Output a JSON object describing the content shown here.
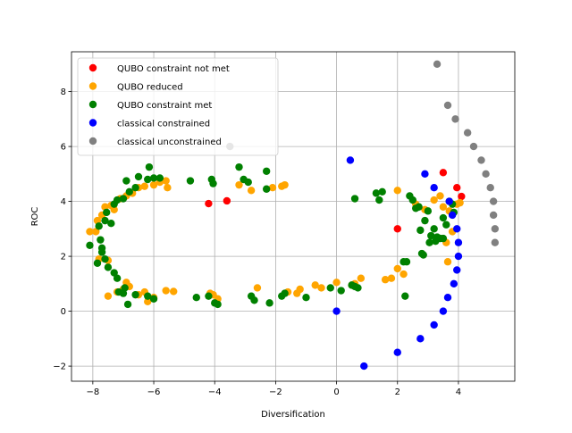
{
  "chart_data": {
    "type": "scatter",
    "title": "",
    "xlabel": "Diversification",
    "ylabel": "ROC",
    "xlim": [
      -8.7,
      5.85
    ],
    "ylim": [
      -2.55,
      9.45
    ],
    "xticks": [
      -8,
      -6,
      -4,
      -2,
      0,
      2,
      4
    ],
    "yticks": [
      -2,
      0,
      2,
      4,
      6,
      8
    ],
    "xtick_labels": [
      "−8",
      "−6",
      "−4",
      "−2",
      "0",
      "2",
      "4"
    ],
    "ytick_labels": [
      "−2",
      "0",
      "2",
      "4",
      "6",
      "8"
    ],
    "grid": true,
    "legend_position": "top-left",
    "series": [
      {
        "name": "QUBO constraint not met",
        "color": "#ff0000",
        "points": [
          [
            -4.2,
            3.92
          ],
          [
            -3.6,
            4.02
          ],
          [
            2.0,
            3.0
          ],
          [
            3.5,
            5.05
          ],
          [
            3.95,
            4.5
          ],
          [
            4.1,
            4.18
          ]
        ]
      },
      {
        "name": "QUBO reduced",
        "color": "#ffa500",
        "points": [
          [
            -8.1,
            2.9
          ],
          [
            -7.9,
            2.9
          ],
          [
            -7.85,
            3.3
          ],
          [
            -7.7,
            3.5
          ],
          [
            -7.6,
            3.8
          ],
          [
            -7.4,
            3.85
          ],
          [
            -7.3,
            3.7
          ],
          [
            -7.1,
            4.1
          ],
          [
            -6.9,
            4.2
          ],
          [
            -6.7,
            4.3
          ],
          [
            -6.5,
            4.5
          ],
          [
            -6.3,
            4.55
          ],
          [
            -6.0,
            4.6
          ],
          [
            -5.8,
            4.7
          ],
          [
            -5.6,
            4.75
          ],
          [
            -5.55,
            4.5
          ],
          [
            -3.2,
            4.6
          ],
          [
            -2.8,
            4.4
          ],
          [
            -2.1,
            4.5
          ],
          [
            -1.8,
            4.55
          ],
          [
            -1.7,
            4.6
          ],
          [
            -7.8,
            1.9
          ],
          [
            -7.5,
            1.85
          ],
          [
            -7.5,
            0.55
          ],
          [
            -7.2,
            0.7
          ],
          [
            -7.0,
            0.8
          ],
          [
            -6.9,
            1.05
          ],
          [
            -6.8,
            0.9
          ],
          [
            -6.5,
            0.6
          ],
          [
            -6.3,
            0.7
          ],
          [
            -6.2,
            0.35
          ],
          [
            -6.0,
            0.5
          ],
          [
            -5.6,
            0.75
          ],
          [
            -5.35,
            0.72
          ],
          [
            -4.15,
            0.65
          ],
          [
            -4.05,
            0.6
          ],
          [
            -3.9,
            0.45
          ],
          [
            -2.6,
            0.85
          ],
          [
            -1.6,
            0.7
          ],
          [
            -1.3,
            0.65
          ],
          [
            -1.2,
            0.8
          ],
          [
            -0.7,
            0.95
          ],
          [
            -0.5,
            0.85
          ],
          [
            0.0,
            1.05
          ],
          [
            0.5,
            0.95
          ],
          [
            0.6,
            1.0
          ],
          [
            0.8,
            1.2
          ],
          [
            1.6,
            1.15
          ],
          [
            1.8,
            1.2
          ],
          [
            2.0,
            1.55
          ],
          [
            2.2,
            1.35
          ],
          [
            2.0,
            4.4
          ],
          [
            2.6,
            3.9
          ],
          [
            2.9,
            3.7
          ],
          [
            3.2,
            4.05
          ],
          [
            3.4,
            4.2
          ],
          [
            3.5,
            3.8
          ],
          [
            3.7,
            3.65
          ],
          [
            3.8,
            2.9
          ],
          [
            3.6,
            2.5
          ],
          [
            3.65,
            1.8
          ],
          [
            3.95,
            3.9
          ],
          [
            4.05,
            3.95
          ]
        ]
      },
      {
        "name": "QUBO constraint met",
        "color": "#008000",
        "points": [
          [
            -8.1,
            2.4
          ],
          [
            -7.8,
            3.1
          ],
          [
            -7.75,
            2.6
          ],
          [
            -7.7,
            2.3
          ],
          [
            -7.6,
            3.3
          ],
          [
            -7.55,
            3.6
          ],
          [
            -7.4,
            3.2
          ],
          [
            -7.3,
            3.9
          ],
          [
            -7.2,
            4.05
          ],
          [
            -7.0,
            4.1
          ],
          [
            -6.9,
            4.75
          ],
          [
            -6.8,
            4.35
          ],
          [
            -6.6,
            4.5
          ],
          [
            -6.5,
            4.9
          ],
          [
            -6.2,
            4.8
          ],
          [
            -6.15,
            5.25
          ],
          [
            -6.0,
            4.85
          ],
          [
            -5.8,
            4.85
          ],
          [
            -4.8,
            4.75
          ],
          [
            -4.1,
            4.8
          ],
          [
            -4.05,
            4.65
          ],
          [
            -3.2,
            5.25
          ],
          [
            -3.05,
            4.8
          ],
          [
            -2.9,
            4.7
          ],
          [
            -2.3,
            5.1
          ],
          [
            -2.3,
            4.45
          ],
          [
            -7.85,
            1.75
          ],
          [
            -7.7,
            2.15
          ],
          [
            -7.6,
            1.9
          ],
          [
            -7.5,
            1.6
          ],
          [
            -7.3,
            1.4
          ],
          [
            -7.2,
            1.2
          ],
          [
            -7.15,
            0.7
          ],
          [
            -7.0,
            0.65
          ],
          [
            -6.95,
            0.85
          ],
          [
            -6.85,
            0.25
          ],
          [
            -6.6,
            0.6
          ],
          [
            -6.2,
            0.55
          ],
          [
            -6.0,
            0.45
          ],
          [
            -4.6,
            0.5
          ],
          [
            -4.2,
            0.55
          ],
          [
            -4.0,
            0.3
          ],
          [
            -3.9,
            0.25
          ],
          [
            -2.8,
            0.55
          ],
          [
            -2.7,
            0.4
          ],
          [
            -2.2,
            0.3
          ],
          [
            -1.8,
            0.55
          ],
          [
            -1.7,
            0.65
          ],
          [
            -1.0,
            0.5
          ],
          [
            -0.2,
            0.85
          ],
          [
            0.15,
            0.75
          ],
          [
            0.5,
            0.95
          ],
          [
            0.6,
            0.9
          ],
          [
            0.7,
            0.85
          ],
          [
            0.6,
            4.1
          ],
          [
            1.3,
            4.3
          ],
          [
            1.4,
            4.05
          ],
          [
            1.5,
            4.35
          ],
          [
            2.2,
            1.8
          ],
          [
            2.3,
            1.8
          ],
          [
            2.25,
            0.55
          ],
          [
            2.4,
            4.2
          ],
          [
            2.5,
            4.05
          ],
          [
            2.6,
            3.75
          ],
          [
            2.7,
            3.8
          ],
          [
            2.75,
            2.95
          ],
          [
            2.8,
            2.1
          ],
          [
            2.85,
            2.05
          ],
          [
            2.9,
            3.3
          ],
          [
            3.0,
            3.65
          ],
          [
            3.05,
            2.5
          ],
          [
            3.1,
            2.75
          ],
          [
            3.2,
            3.0
          ],
          [
            3.25,
            2.55
          ],
          [
            3.3,
            2.7
          ],
          [
            3.4,
            2.65
          ],
          [
            3.5,
            2.65
          ],
          [
            3.5,
            3.4
          ],
          [
            3.6,
            3.15
          ],
          [
            3.7,
            4.0
          ],
          [
            3.8,
            3.9
          ],
          [
            3.85,
            3.6
          ]
        ]
      },
      {
        "name": "classical constrained",
        "color": "#0000ff",
        "points": [
          [
            0.45,
            5.5
          ],
          [
            2.9,
            5.0
          ],
          [
            3.2,
            4.5
          ],
          [
            3.7,
            4.0
          ],
          [
            3.8,
            3.5
          ],
          [
            3.95,
            3.0
          ],
          [
            4.0,
            2.5
          ],
          [
            4.0,
            2.0
          ],
          [
            3.95,
            1.5
          ],
          [
            3.85,
            1.0
          ],
          [
            3.65,
            0.5
          ],
          [
            3.5,
            0.0
          ],
          [
            3.2,
            -0.5
          ],
          [
            2.75,
            -1.0
          ],
          [
            2.0,
            -1.5
          ],
          [
            0.9,
            -2.0
          ],
          [
            0.0,
            0.0
          ]
        ]
      },
      {
        "name": "classical unconstrained",
        "color": "#808080",
        "points": [
          [
            -3.5,
            6.0
          ],
          [
            3.3,
            9.0
          ],
          [
            3.65,
            7.5
          ],
          [
            3.9,
            7.0
          ],
          [
            4.3,
            6.5
          ],
          [
            4.5,
            6.0
          ],
          [
            4.75,
            5.5
          ],
          [
            4.9,
            5.0
          ],
          [
            5.05,
            4.5
          ],
          [
            5.15,
            4.0
          ],
          [
            5.15,
            3.5
          ],
          [
            5.2,
            3.0
          ],
          [
            5.2,
            2.5
          ]
        ]
      }
    ]
  }
}
